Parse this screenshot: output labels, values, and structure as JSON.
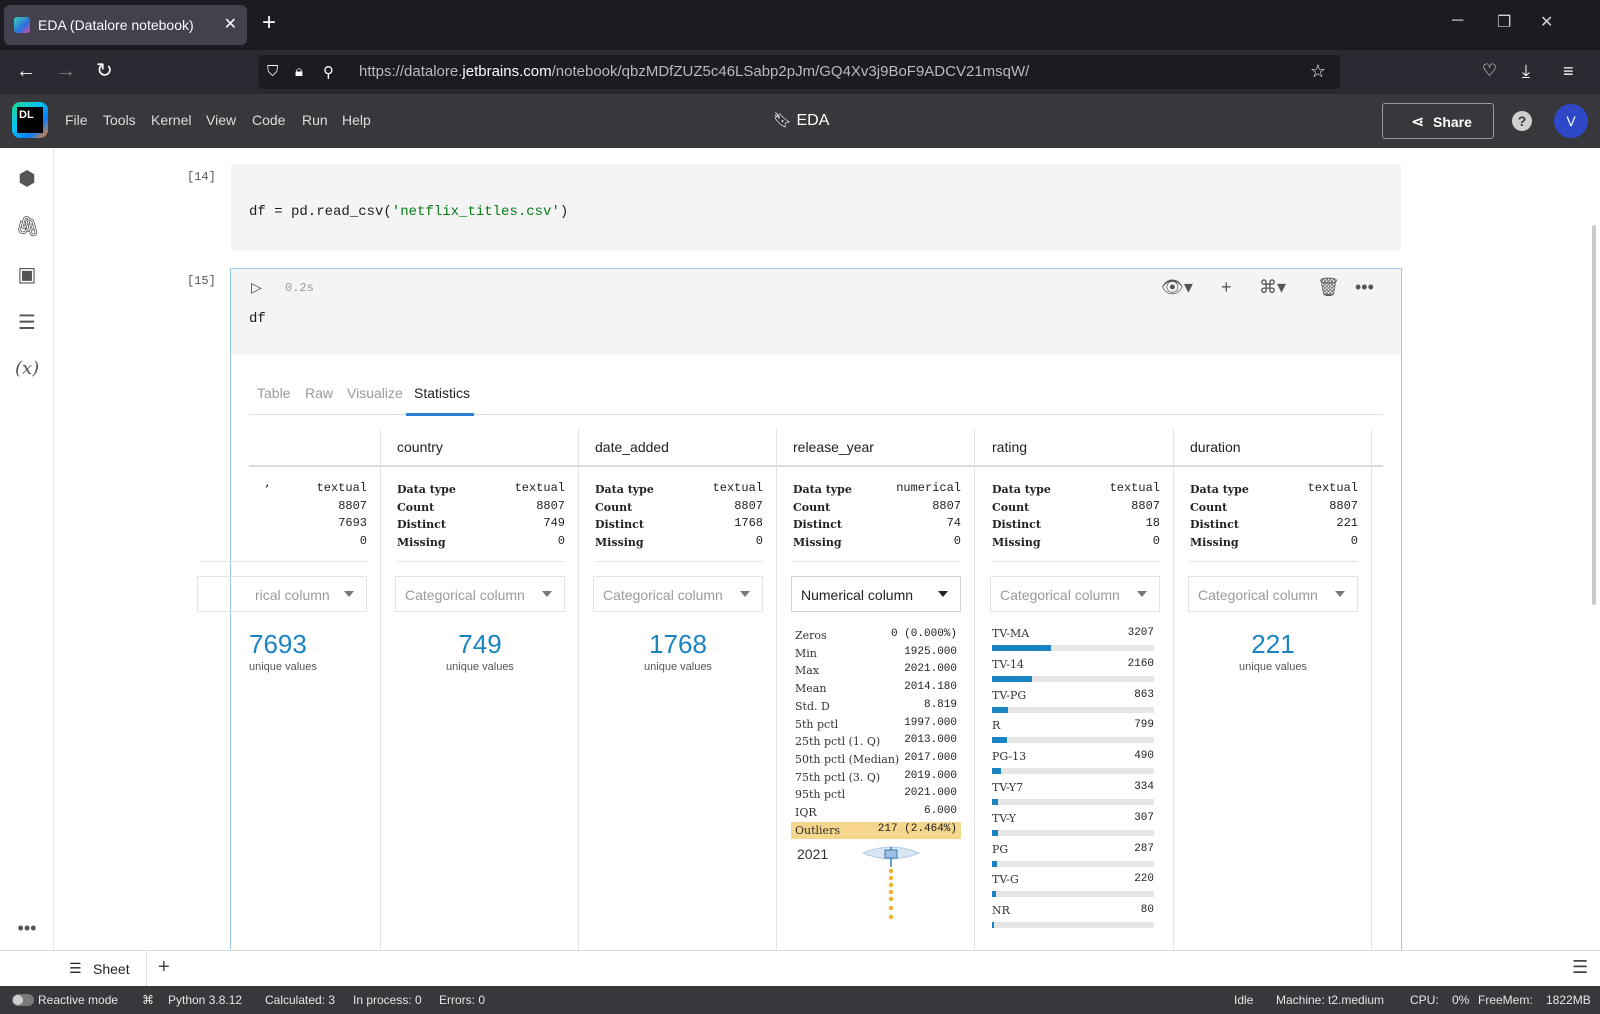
{
  "browser": {
    "tab_title": "EDA (Datalore notebook)",
    "url_prefix": "https://datalore.",
    "url_host": "jetbrains.com",
    "url_path": "/notebook/qbzMDfZUZ5c46LSabp2pJm/GQ4Xv3j9BoF9ADCV21msqW/"
  },
  "app": {
    "menu": [
      "File",
      "Tools",
      "Kernel",
      "View",
      "Code",
      "Run",
      "Help"
    ],
    "logo_text": "DL",
    "doc_title": "EDA",
    "share_label": "Share",
    "help_label": "?",
    "avatar_letter": "V"
  },
  "cells": [
    {
      "number": "[14]",
      "code_pre": "df = pd.read_csv(",
      "code_str": "'netflix_titles.csv'",
      "code_post": ")"
    },
    {
      "number": "[15]",
      "time": "0.2s",
      "code": "df"
    }
  ],
  "output_tabs": [
    "Table",
    "Raw",
    "Visualize",
    "Statistics"
  ],
  "active_tab": "Statistics",
  "stat_labels": {
    "data_type": "Data type",
    "count": "Count",
    "distinct": "Distinct",
    "missing": "Missing",
    "unique_values": "unique values"
  },
  "columns": [
    {
      "name": "",
      "label_partial": "ʼ",
      "data_type": "textual",
      "count": "8807",
      "distinct": "7693",
      "missing": "0",
      "dropdown": "rical column",
      "unique": "7693"
    },
    {
      "name": "country",
      "data_type": "textual",
      "count": "8807",
      "distinct": "749",
      "missing": "0",
      "dropdown": "Categorical column",
      "unique": "749"
    },
    {
      "name": "date_added",
      "data_type": "textual",
      "count": "8807",
      "distinct": "1768",
      "missing": "0",
      "dropdown": "Categorical column",
      "unique": "1768"
    },
    {
      "name": "release_year",
      "data_type": "numerical",
      "count": "8807",
      "distinct": "74",
      "missing": "0",
      "dropdown": "Numerical column"
    },
    {
      "name": "rating",
      "data_type": "textual",
      "count": "8807",
      "distinct": "18",
      "missing": "0",
      "dropdown": "Categorical column"
    },
    {
      "name": "duration",
      "data_type": "textual",
      "count": "8807",
      "distinct": "221",
      "missing": "0",
      "dropdown": "Categorical column",
      "unique": "221"
    }
  ],
  "numeric_stats": [
    {
      "k": "Zeros",
      "v": "0 (0.000%)"
    },
    {
      "k": "Min",
      "v": "1925.000"
    },
    {
      "k": "Max",
      "v": "2021.000"
    },
    {
      "k": "Mean",
      "v": "2014.180"
    },
    {
      "k": "Std. D",
      "v": "8.819"
    },
    {
      "k": "5th pctl",
      "v": "1997.000"
    },
    {
      "k": "25th pctl (1. Q)",
      "v": "2013.000"
    },
    {
      "k": "50th pctl (Median)",
      "v": "2017.000"
    },
    {
      "k": "75th pctl (3. Q)",
      "v": "2019.000"
    },
    {
      "k": "95th pctl",
      "v": "2021.000"
    },
    {
      "k": "IQR",
      "v": "6.000"
    },
    {
      "k": "Outliers",
      "v": "217 (2.464%)"
    }
  ],
  "box_label": "2021",
  "rating_counts": [
    {
      "k": "TV-MA",
      "v": 3207
    },
    {
      "k": "TV-14",
      "v": 2160
    },
    {
      "k": "TV-PG",
      "v": 863
    },
    {
      "k": "R",
      "v": 799
    },
    {
      "k": "PG-13",
      "v": 490
    },
    {
      "k": "TV-Y7",
      "v": 334
    },
    {
      "k": "TV-Y",
      "v": 307
    },
    {
      "k": "PG",
      "v": 287
    },
    {
      "k": "TV-G",
      "v": 220
    },
    {
      "k": "NR",
      "v": 80
    }
  ],
  "sheet": {
    "tab_label": "Sheet",
    "add_label": "+"
  },
  "status": {
    "reactive": "Reactive mode",
    "python": "Python 3.8.12",
    "calculated": "Calculated: 3",
    "in_process": "In process: 0",
    "errors": "Errors: 0",
    "idle": "Idle",
    "machine": "Machine: t2.medium",
    "cpu": "CPU:",
    "cpu_val": "0%",
    "freemem": "FreeMem:",
    "freemem_val": "1822MB"
  },
  "colors": {
    "accent": "#1a84c3",
    "outlier": "#f6d58c",
    "header": "#37373c"
  }
}
